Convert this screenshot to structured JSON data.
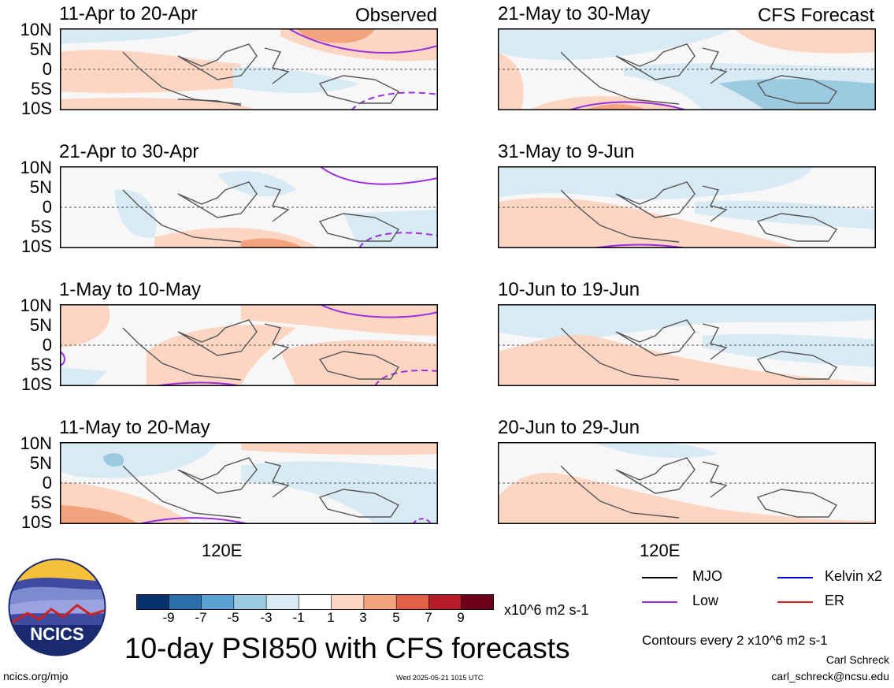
{
  "figure": {
    "title": "10-day PSI850 with CFS forecasts",
    "left_column_label": "Observed",
    "right_column_label": "CFS Forecast",
    "lon_label": "120E",
    "lat_labels": [
      "10N",
      "5N",
      "0",
      "5S",
      "10S"
    ]
  },
  "panels": [
    {
      "title": "11-Apr to 20-Apr",
      "column": "observed"
    },
    {
      "title": "21-Apr to 30-Apr",
      "column": "observed"
    },
    {
      "title": "1-May to 10-May",
      "column": "observed"
    },
    {
      "title": "11-May to 20-May",
      "column": "observed"
    },
    {
      "title": "21-May to 30-May",
      "column": "forecast"
    },
    {
      "title": "31-May to 9-Jun",
      "column": "forecast"
    },
    {
      "title": "10-Jun to 19-Jun",
      "column": "forecast"
    },
    {
      "title": "20-Jun to 29-Jun",
      "column": "forecast"
    }
  ],
  "colorbar": {
    "ticks": [
      "-9",
      "-7",
      "-5",
      "-3",
      "-1",
      "1",
      "3",
      "5",
      "7",
      "9"
    ],
    "units": "x10^6 m2 s-1",
    "colors": [
      "#08306b",
      "#2b6fac",
      "#5aa0d2",
      "#9ccae1",
      "#d8eaf4",
      "#ffffff",
      "#fcd6c2",
      "#f4a37f",
      "#e0604a",
      "#b51c29",
      "#6b0018"
    ]
  },
  "legend": {
    "items": [
      {
        "label": "MJO",
        "color": "#000000"
      },
      {
        "label": "Kelvin x2",
        "color": "#0000cc"
      },
      {
        "label": "Low",
        "color": "#9a30e0"
      },
      {
        "label": "ER",
        "color": "#e02020"
      }
    ],
    "contour_note": "Contours every 2 x10^6 m2 s-1"
  },
  "footer": {
    "logo_text": "NCICS",
    "url": "ncics.org/mjo",
    "timestamp": "Wed 2025-05-21 1015 UTC",
    "author": "Carl Schreck",
    "email": "carl_schreck@ncsu.edu"
  }
}
